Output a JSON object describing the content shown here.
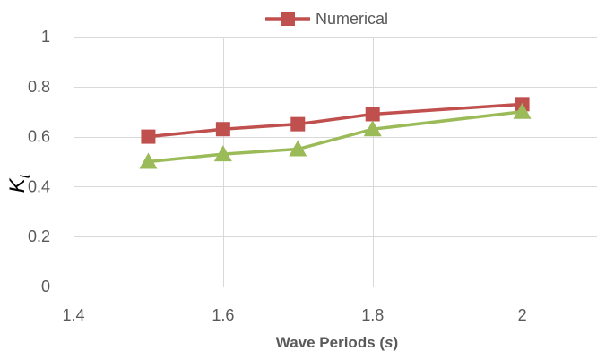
{
  "chart_data": {
    "type": "line",
    "title": "",
    "x": [
      1.5,
      1.6,
      1.7,
      1.8,
      2.0
    ],
    "series": [
      {
        "name": "Numerical",
        "values": [
          0.6,
          0.63,
          0.65,
          0.69,
          0.73
        ],
        "color": "#c0504d",
        "marker": "square"
      },
      {
        "values": [
          0.5,
          0.53,
          0.55,
          0.63,
          0.7
        ],
        "color": "#9bbb59",
        "marker": "triangle"
      }
    ],
    "xlabel": {
      "main": "Wave Periods (",
      "unit": "s",
      "close": ")"
    },
    "ylabel": {
      "main": "K",
      "sub": "t"
    },
    "xlim": [
      1.4,
      2.1
    ],
    "ylim": [
      0,
      1
    ],
    "xticks": [
      "1.4",
      "1.6",
      "1.8",
      "2"
    ],
    "yticks": [
      "0",
      "0.2",
      "0.4",
      "0.6",
      "0.8",
      "1"
    ],
    "xtick_values": [
      1.4,
      1.6,
      1.8,
      2.0
    ],
    "ytick_values": [
      0,
      0.2,
      0.4,
      0.6,
      0.8,
      1.0
    ],
    "grid": true,
    "legend_position": "top"
  }
}
